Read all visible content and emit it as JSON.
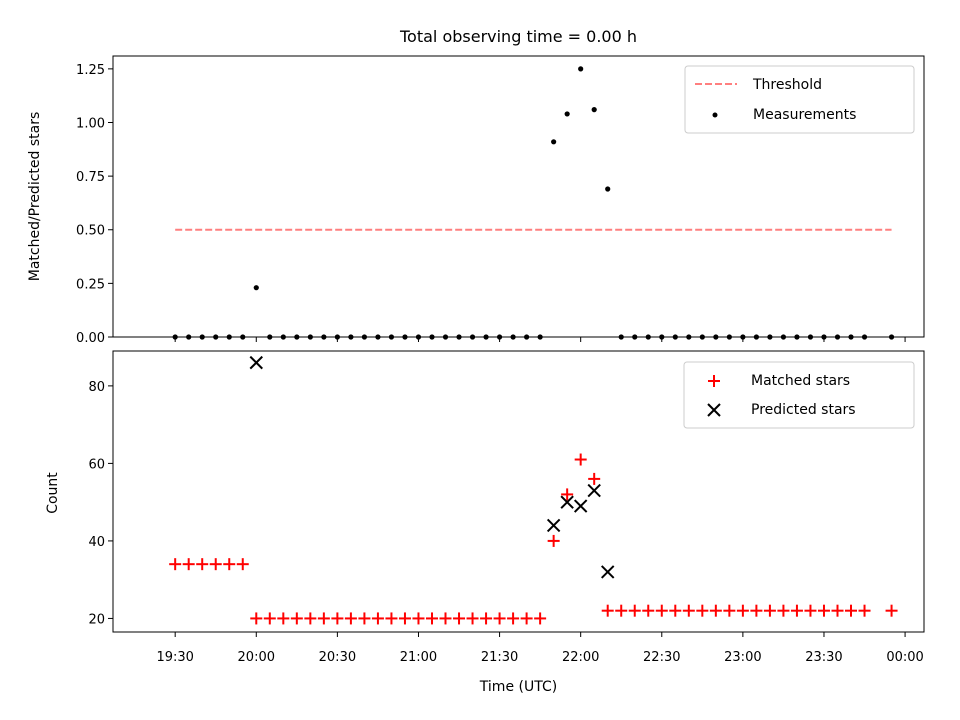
{
  "chart_data": [
    {
      "type": "scatter",
      "title": "Total observing time = 0.00 h",
      "ylabel": "Matched/Predicted stars",
      "ylim": [
        0,
        1.31
      ],
      "yticks": [
        "0.00",
        "0.25",
        "0.50",
        "0.75",
        "1.00",
        "1.25"
      ],
      "ytick_values": [
        0,
        0.25,
        0.5,
        0.75,
        1.0,
        1.25
      ],
      "legend_position": "top-right",
      "threshold": {
        "name": "Threshold",
        "value": 0.5,
        "x_start": "19:30",
        "x_end": "23:55",
        "color": "#ff7f7f",
        "style": "dashed"
      },
      "series": [
        {
          "name": "Measurements",
          "marker": "dot",
          "color": "#000000",
          "x": [
            "19:30",
            "19:35",
            "19:40",
            "19:45",
            "19:50",
            "19:55",
            "20:00",
            "20:05",
            "20:10",
            "20:15",
            "20:20",
            "20:25",
            "20:30",
            "20:35",
            "20:40",
            "20:45",
            "20:50",
            "20:55",
            "21:00",
            "21:05",
            "21:10",
            "21:15",
            "21:20",
            "21:25",
            "21:30",
            "21:35",
            "21:40",
            "21:45",
            "21:50",
            "21:55",
            "22:00",
            "22:05",
            "22:10",
            "22:15",
            "22:20",
            "22:25",
            "22:30",
            "22:35",
            "22:40",
            "22:45",
            "22:50",
            "22:55",
            "23:00",
            "23:05",
            "23:10",
            "23:15",
            "23:20",
            "23:25",
            "23:30",
            "23:35",
            "23:40",
            "23:45",
            "23:55"
          ],
          "y": [
            0,
            0,
            0,
            0,
            0,
            0,
            0.23,
            0,
            0,
            0,
            0,
            0,
            0,
            0,
            0,
            0,
            0,
            0,
            0,
            0,
            0,
            0,
            0,
            0,
            0,
            0,
            0,
            0,
            0.91,
            1.04,
            1.25,
            1.06,
            0.69,
            0,
            0,
            0,
            0,
            0,
            0,
            0,
            0,
            0,
            0,
            0,
            0,
            0,
            0,
            0,
            0,
            0,
            0,
            0,
            0
          ]
        }
      ]
    },
    {
      "type": "scatter",
      "title": "",
      "xlabel": "Time (UTC)",
      "ylabel": "Count",
      "ylim": [
        16.5,
        89
      ],
      "yticks": [
        "20",
        "40",
        "60",
        "80"
      ],
      "ytick_values": [
        20,
        40,
        60,
        80
      ],
      "xlim": [
        "19:07",
        "00:07"
      ],
      "xticks": [
        "19:30",
        "20:00",
        "20:30",
        "21:00",
        "21:30",
        "22:00",
        "22:30",
        "23:00",
        "23:30",
        "00:00"
      ],
      "legend_position": "top-right",
      "series": [
        {
          "name": "Matched stars",
          "marker": "plus",
          "color": "#ff0000",
          "x": [
            "19:30",
            "19:35",
            "19:40",
            "19:45",
            "19:50",
            "19:55",
            "20:00",
            "20:05",
            "20:10",
            "20:15",
            "20:20",
            "20:25",
            "20:30",
            "20:35",
            "20:40",
            "20:45",
            "20:50",
            "20:55",
            "21:00",
            "21:05",
            "21:10",
            "21:15",
            "21:20",
            "21:25",
            "21:30",
            "21:35",
            "21:40",
            "21:45",
            "21:50",
            "21:55",
            "22:00",
            "22:05",
            "22:10",
            "22:15",
            "22:20",
            "22:25",
            "22:30",
            "22:35",
            "22:40",
            "22:45",
            "22:50",
            "22:55",
            "23:00",
            "23:05",
            "23:10",
            "23:15",
            "23:20",
            "23:25",
            "23:30",
            "23:35",
            "23:40",
            "23:45",
            "23:55"
          ],
          "y": [
            34,
            34,
            34,
            34,
            34,
            34,
            20,
            20,
            20,
            20,
            20,
            20,
            20,
            20,
            20,
            20,
            20,
            20,
            20,
            20,
            20,
            20,
            20,
            20,
            20,
            20,
            20,
            20,
            40,
            52,
            61,
            56,
            22,
            22,
            22,
            22,
            22,
            22,
            22,
            22,
            22,
            22,
            22,
            22,
            22,
            22,
            22,
            22,
            22,
            22,
            22,
            22,
            22
          ]
        },
        {
          "name": "Predicted stars",
          "marker": "x",
          "color": "#000000",
          "x": [
            "20:00",
            "21:50",
            "21:55",
            "22:00",
            "22:05",
            "22:10"
          ],
          "y": [
            86,
            44,
            50,
            49,
            53,
            32
          ]
        }
      ]
    }
  ]
}
